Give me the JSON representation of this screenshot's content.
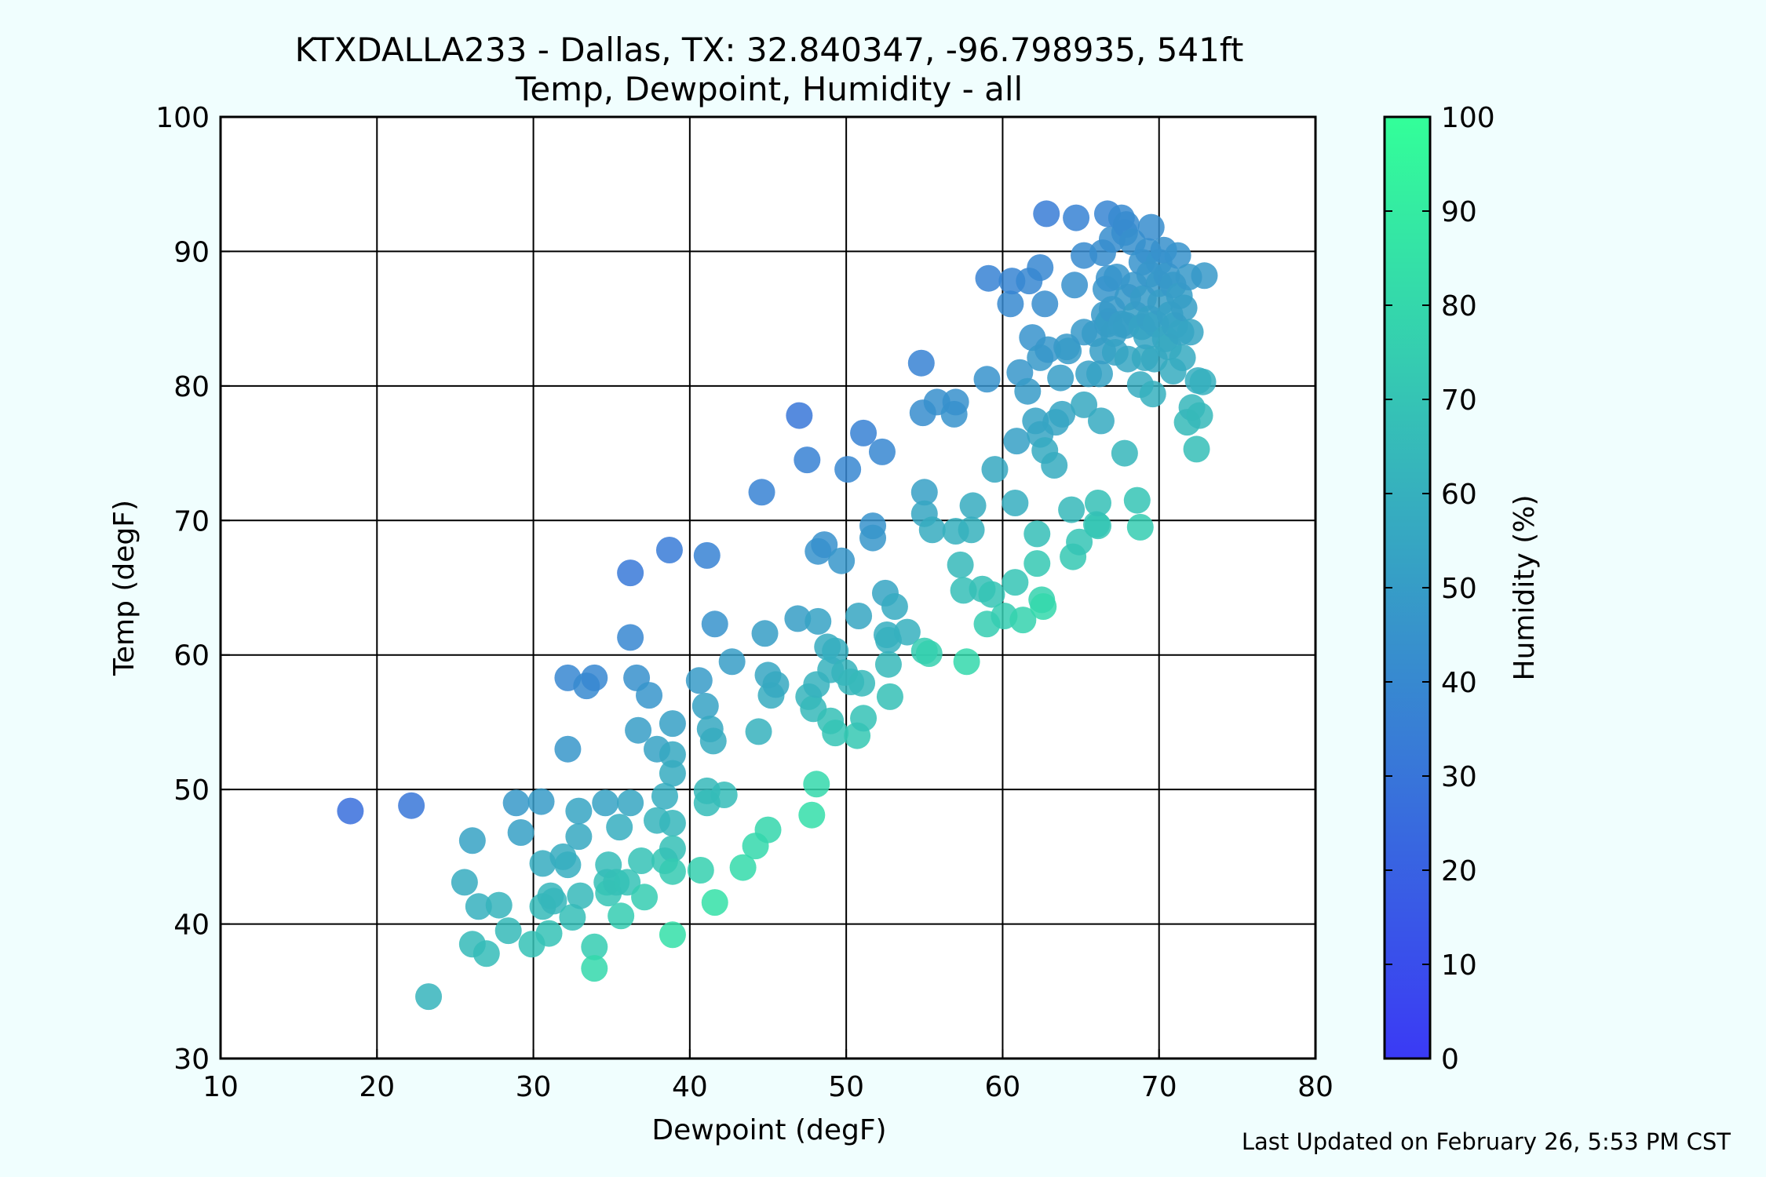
{
  "chart_data": {
    "type": "scatter",
    "title": "KTXDALLA233 - Dallas, TX: 32.840347, -96.798935, 541ft",
    "subtitle": "Temp, Dewpoint, Humidity - all",
    "xlabel": "Dewpoint (degF)",
    "ylabel": "Temp (degF)",
    "xlim": [
      10,
      80
    ],
    "ylim": [
      30,
      100
    ],
    "xticks": [
      "10",
      "20",
      "30",
      "40",
      "50",
      "60",
      "70",
      "80"
    ],
    "yticks": [
      "30",
      "40",
      "50",
      "60",
      "70",
      "80",
      "90",
      "100"
    ],
    "grid": true,
    "colorbar": {
      "label": "Humidity (%)",
      "range": [
        0,
        100
      ],
      "ticks": [
        "0",
        "10",
        "20",
        "30",
        "40",
        "50",
        "60",
        "70",
        "80",
        "90",
        "100"
      ],
      "color_low": "#3a3af5",
      "color_high": "#33ff99"
    },
    "points": [
      [
        18.3,
        48.4,
        27
      ],
      [
        22.2,
        48.8,
        31
      ],
      [
        23.3,
        34.6,
        62
      ],
      [
        25.6,
        43.1,
        58
      ],
      [
        26.1,
        46.2,
        53
      ],
      [
        26.1,
        38.5,
        65
      ],
      [
        26.5,
        41.3,
        60
      ],
      [
        27.0,
        37.8,
        66
      ],
      [
        27.8,
        41.4,
        62
      ],
      [
        28.4,
        39.5,
        65
      ],
      [
        28.9,
        49.0,
        48
      ],
      [
        29.2,
        46.8,
        52
      ],
      [
        29.9,
        38.5,
        69
      ],
      [
        30.5,
        49.1,
        49
      ],
      [
        30.6,
        44.5,
        58
      ],
      [
        30.6,
        41.3,
        65
      ],
      [
        31.0,
        39.3,
        69
      ],
      [
        31.1,
        42.1,
        63
      ],
      [
        31.3,
        41.7,
        63
      ],
      [
        31.9,
        45.0,
        58
      ],
      [
        32.2,
        44.4,
        59
      ],
      [
        32.2,
        53.0,
        47
      ],
      [
        32.2,
        58.3,
        39
      ],
      [
        32.5,
        40.5,
        67
      ],
      [
        32.9,
        46.5,
        56
      ],
      [
        32.9,
        48.4,
        54
      ],
      [
        33.0,
        42.1,
        64
      ],
      [
        33.4,
        57.7,
        40
      ],
      [
        33.9,
        58.3,
        39
      ],
      [
        33.9,
        38.3,
        74
      ],
      [
        33.9,
        36.7,
        80
      ],
      [
        34.6,
        49.0,
        53
      ],
      [
        34.7,
        43.1,
        68
      ],
      [
        34.8,
        42.3,
        70
      ],
      [
        34.8,
        44.4,
        66
      ],
      [
        35.3,
        43.1,
        68
      ],
      [
        35.5,
        47.2,
        59
      ],
      [
        35.6,
        40.6,
        74
      ],
      [
        36.0,
        43.1,
        69
      ],
      [
        36.2,
        49.0,
        55
      ],
      [
        36.2,
        61.3,
        39
      ],
      [
        36.2,
        66.1,
        32
      ],
      [
        36.6,
        58.3,
        44
      ],
      [
        36.7,
        54.4,
        50
      ],
      [
        36.9,
        44.7,
        69
      ],
      [
        37.1,
        42.0,
        74
      ],
      [
        37.4,
        57.0,
        46
      ],
      [
        37.9,
        47.7,
        62
      ],
      [
        37.9,
        53.0,
        53
      ],
      [
        38.4,
        49.5,
        59
      ],
      [
        38.4,
        44.7,
        71
      ],
      [
        38.7,
        67.8,
        33
      ],
      [
        38.9,
        54.9,
        52
      ],
      [
        38.9,
        52.6,
        56
      ],
      [
        38.9,
        47.5,
        63
      ],
      [
        38.9,
        45.6,
        68
      ],
      [
        38.9,
        43.9,
        73
      ],
      [
        38.9,
        51.2,
        58
      ],
      [
        38.9,
        39.2,
        84
      ],
      [
        40.6,
        58.1,
        49
      ],
      [
        40.7,
        44.0,
        76
      ],
      [
        41.0,
        56.2,
        53
      ],
      [
        41.1,
        67.4,
        37
      ],
      [
        41.1,
        49.9,
        64
      ],
      [
        41.1,
        49.0,
        66
      ],
      [
        41.3,
        54.5,
        56
      ],
      [
        41.5,
        53.6,
        58
      ],
      [
        41.6,
        41.6,
        85
      ],
      [
        41.6,
        62.3,
        45
      ],
      [
        42.2,
        49.6,
        66
      ],
      [
        42.7,
        59.5,
        50
      ],
      [
        43.4,
        44.2,
        81
      ],
      [
        44.2,
        45.8,
        80
      ],
      [
        44.4,
        54.3,
        61
      ],
      [
        44.6,
        72.1,
        37
      ],
      [
        44.8,
        61.6,
        51
      ],
      [
        45.0,
        58.5,
        55
      ],
      [
        45.0,
        47.0,
        79
      ],
      [
        45.2,
        57.0,
        58
      ],
      [
        45.5,
        57.8,
        56
      ],
      [
        46.9,
        62.7,
        51
      ],
      [
        47.0,
        77.8,
        31
      ],
      [
        47.5,
        74.5,
        36
      ],
      [
        47.6,
        56.9,
        62
      ],
      [
        47.8,
        48.1,
        83
      ],
      [
        47.9,
        56.0,
        64
      ],
      [
        48.1,
        50.4,
        80
      ],
      [
        48.1,
        57.8,
        61
      ],
      [
        48.2,
        67.7,
        45
      ],
      [
        48.2,
        62.5,
        53
      ],
      [
        48.6,
        68.2,
        44
      ],
      [
        48.8,
        60.6,
        58
      ],
      [
        49.0,
        58.9,
        61
      ],
      [
        49.0,
        55.1,
        68
      ],
      [
        49.3,
        60.3,
        59
      ],
      [
        49.3,
        54.2,
        70
      ],
      [
        49.7,
        67.0,
        47
      ],
      [
        49.9,
        58.7,
        62
      ],
      [
        50.1,
        73.8,
        39
      ],
      [
        50.3,
        58.0,
        63
      ],
      [
        50.8,
        62.9,
        55
      ],
      [
        50.7,
        54.0,
        72
      ],
      [
        51.0,
        57.9,
        64
      ],
      [
        51.1,
        76.5,
        36
      ],
      [
        51.1,
        55.3,
        69
      ],
      [
        51.7,
        69.6,
        45
      ],
      [
        51.7,
        68.7,
        47
      ],
      [
        52.3,
        75.1,
        39
      ],
      [
        52.5,
        64.6,
        54
      ],
      [
        52.6,
        61.5,
        59
      ],
      [
        52.7,
        59.3,
        64
      ],
      [
        52.7,
        61.1,
        60
      ],
      [
        52.8,
        56.9,
        68
      ],
      [
        53.1,
        63.6,
        57
      ],
      [
        53.9,
        61.7,
        60
      ],
      [
        54.8,
        81.7,
        37
      ],
      [
        54.9,
        78.0,
        42
      ],
      [
        55.0,
        72.1,
        52
      ],
      [
        55.0,
        60.3,
        74
      ],
      [
        55.0,
        70.5,
        55
      ],
      [
        55.3,
        60.1,
        76
      ],
      [
        55.5,
        69.3,
        58
      ],
      [
        55.8,
        78.8,
        43
      ],
      [
        56.9,
        77.9,
        45
      ],
      [
        57.0,
        78.8,
        44
      ],
      [
        57.0,
        69.2,
        60
      ],
      [
        57.3,
        66.7,
        64
      ],
      [
        57.5,
        64.8,
        67
      ],
      [
        57.7,
        59.5,
        80
      ],
      [
        58.0,
        69.3,
        61
      ],
      [
        58.1,
        71.1,
        58
      ],
      [
        58.7,
        64.9,
        68
      ],
      [
        59.0,
        62.3,
        74
      ],
      [
        59.0,
        80.5,
        45
      ],
      [
        59.1,
        88.0,
        37
      ],
      [
        59.3,
        64.5,
        70
      ],
      [
        59.5,
        73.8,
        56
      ],
      [
        60.1,
        62.9,
        74
      ],
      [
        60.5,
        86.1,
        40
      ],
      [
        60.6,
        87.8,
        38
      ],
      [
        60.8,
        71.3,
        59
      ],
      [
        60.8,
        65.4,
        70
      ],
      [
        60.9,
        75.9,
        52
      ],
      [
        61.1,
        81.0,
        47
      ],
      [
        61.3,
        62.6,
        77
      ],
      [
        61.6,
        79.6,
        49
      ],
      [
        61.7,
        87.8,
        39
      ],
      [
        61.9,
        83.6,
        45
      ],
      [
        62.1,
        77.4,
        53
      ],
      [
        62.2,
        69.0,
        67
      ],
      [
        62.2,
        66.8,
        72
      ],
      [
        62.4,
        82.1,
        48
      ],
      [
        62.4,
        88.8,
        39
      ],
      [
        62.4,
        76.4,
        54
      ],
      [
        62.5,
        64.1,
        77
      ],
      [
        62.6,
        63.6,
        80
      ],
      [
        62.7,
        75.2,
        57
      ],
      [
        62.7,
        86.1,
        42
      ],
      [
        62.8,
        92.8,
        34
      ],
      [
        62.9,
        82.7,
        47
      ],
      [
        63.3,
        74.1,
        58
      ],
      [
        63.4,
        77.3,
        54
      ],
      [
        63.7,
        80.6,
        50
      ],
      [
        63.8,
        77.9,
        54
      ],
      [
        64.1,
        82.9,
        48
      ],
      [
        64.2,
        82.6,
        49
      ],
      [
        64.4,
        70.8,
        64
      ],
      [
        64.5,
        67.3,
        72
      ],
      [
        64.6,
        87.5,
        44
      ],
      [
        64.7,
        92.5,
        37
      ],
      [
        64.9,
        68.4,
        70
      ],
      [
        65.2,
        89.7,
        41
      ],
      [
        65.2,
        84.0,
        48
      ],
      [
        65.2,
        78.6,
        56
      ],
      [
        65.5,
        80.9,
        52
      ],
      [
        65.9,
        83.9,
        49
      ],
      [
        66.0,
        69.7,
        70
      ],
      [
        66.1,
        69.6,
        71
      ],
      [
        66.1,
        71.3,
        68
      ],
      [
        66.2,
        80.9,
        53
      ],
      [
        66.3,
        77.4,
        57
      ],
      [
        66.4,
        82.6,
        51
      ],
      [
        66.4,
        89.9,
        42
      ],
      [
        66.5,
        85.3,
        48
      ],
      [
        66.6,
        87.2,
        46
      ],
      [
        66.7,
        84.6,
        49
      ],
      [
        66.7,
        92.8,
        38
      ],
      [
        66.8,
        88.0,
        45
      ],
      [
        66.8,
        84.8,
        50
      ],
      [
        67.0,
        90.9,
        42
      ],
      [
        67.0,
        85.7,
        48
      ],
      [
        67.1,
        83.9,
        51
      ],
      [
        67.2,
        82.5,
        53
      ],
      [
        67.3,
        88.1,
        46
      ],
      [
        67.6,
        92.5,
        40
      ],
      [
        67.6,
        84.6,
        50
      ],
      [
        67.8,
        91.4,
        42
      ],
      [
        67.8,
        75.0,
        63
      ],
      [
        67.9,
        92.0,
        41
      ],
      [
        67.9,
        84.5,
        51
      ],
      [
        68.0,
        86.6,
        48
      ],
      [
        68.0,
        82.0,
        55
      ],
      [
        68.3,
        90.7,
        43
      ],
      [
        68.4,
        87.5,
        47
      ],
      [
        68.5,
        85.3,
        51
      ],
      [
        68.6,
        71.5,
        70
      ],
      [
        68.8,
        80.1,
        58
      ],
      [
        68.8,
        69.5,
        74
      ],
      [
        68.9,
        89.2,
        45
      ],
      [
        68.9,
        84.4,
        53
      ],
      [
        69.0,
        86.5,
        49
      ],
      [
        69.1,
        82.1,
        56
      ],
      [
        69.2,
        83.7,
        54
      ],
      [
        69.3,
        90.0,
        44
      ],
      [
        69.4,
        88.3,
        47
      ],
      [
        69.4,
        85.0,
        52
      ],
      [
        69.5,
        91.8,
        42
      ],
      [
        69.6,
        79.4,
        60
      ],
      [
        69.7,
        82.0,
        56
      ],
      [
        69.8,
        84.6,
        53
      ],
      [
        70.0,
        89.2,
        46
      ],
      [
        70.0,
        87.6,
        48
      ],
      [
        70.1,
        86.2,
        50
      ],
      [
        70.3,
        90.1,
        44
      ],
      [
        70.4,
        83.5,
        55
      ],
      [
        70.5,
        88.2,
        47
      ],
      [
        70.6,
        82.9,
        56
      ],
      [
        70.7,
        85.3,
        52
      ],
      [
        70.9,
        81.1,
        58
      ],
      [
        70.9,
        87.5,
        48
      ],
      [
        71.0,
        84.5,
        53
      ],
      [
        71.2,
        89.7,
        45
      ],
      [
        71.3,
        86.7,
        50
      ],
      [
        71.4,
        84.0,
        54
      ],
      [
        71.5,
        82.1,
        57
      ],
      [
        71.6,
        85.8,
        51
      ],
      [
        71.8,
        77.3,
        65
      ],
      [
        71.9,
        88.1,
        48
      ],
      [
        72.0,
        84.0,
        54
      ],
      [
        72.1,
        78.4,
        63
      ],
      [
        72.4,
        75.3,
        67
      ],
      [
        72.5,
        80.4,
        59
      ],
      [
        72.6,
        77.8,
        64
      ],
      [
        72.8,
        80.3,
        60
      ],
      [
        72.9,
        88.2,
        48
      ]
    ],
    "footnote": "Last Updated on February 26, 5:53 PM CST"
  }
}
